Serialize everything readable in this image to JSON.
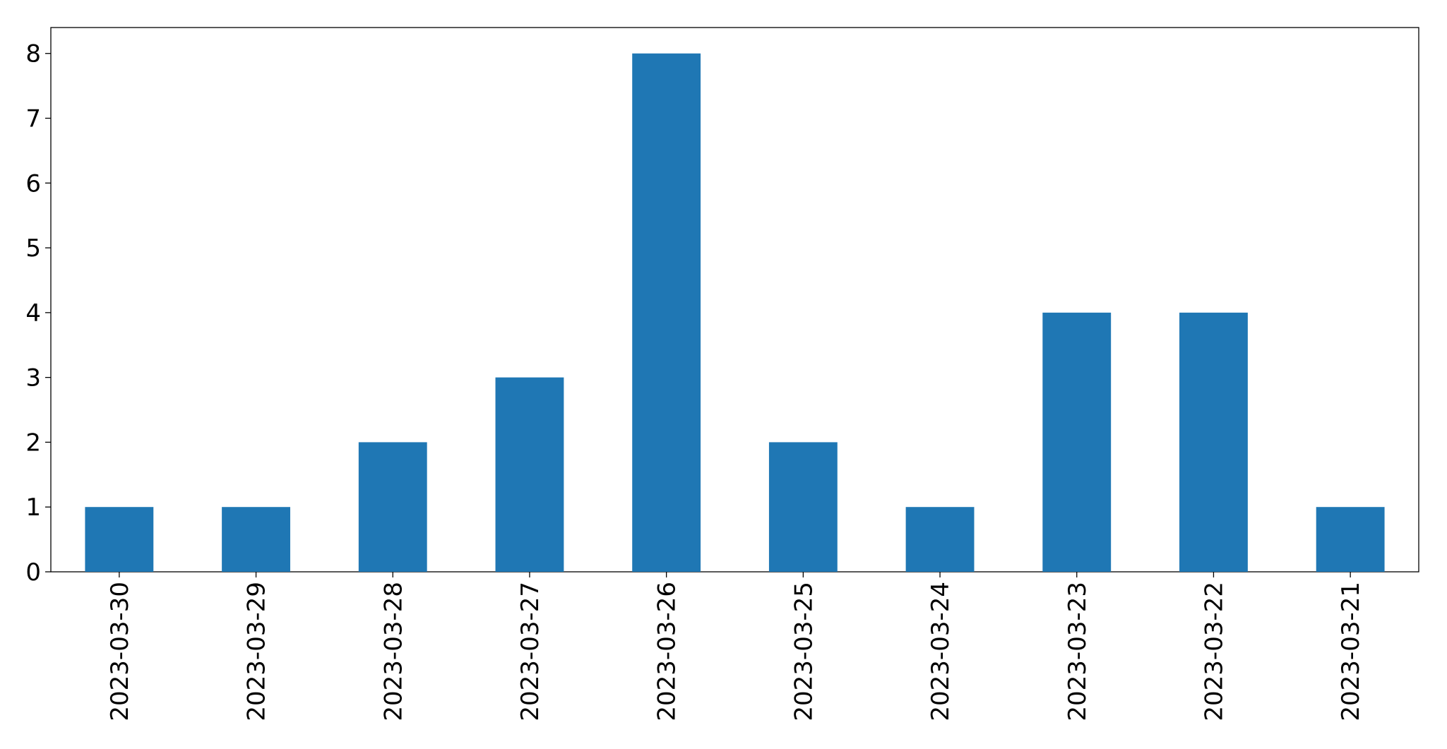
{
  "chart_data": {
    "type": "bar",
    "categories": [
      "2023-03-30",
      "2023-03-29",
      "2023-03-28",
      "2023-03-27",
      "2023-03-26",
      "2023-03-25",
      "2023-03-24",
      "2023-03-23",
      "2023-03-22",
      "2023-03-21"
    ],
    "values": [
      1,
      1,
      2,
      3,
      8,
      2,
      1,
      4,
      4,
      1
    ],
    "color": "#1f77b4",
    "ylim": [
      0,
      8.4
    ],
    "yticks": [
      0,
      1,
      2,
      3,
      4,
      5,
      6,
      7,
      8
    ],
    "grid": false
  }
}
